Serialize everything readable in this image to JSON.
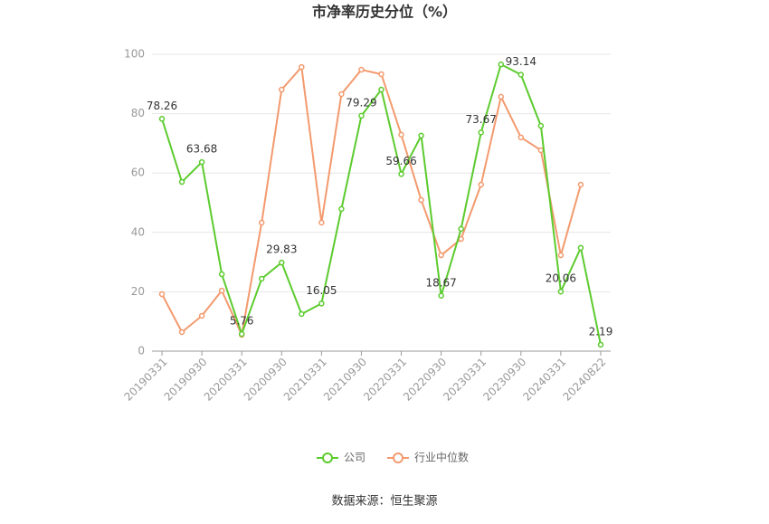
{
  "chart_data": {
    "type": "line",
    "title": "市净率历史分位（%）",
    "categories": [
      "20190331",
      null,
      "20190930",
      null,
      "20200331",
      null,
      "20200930",
      null,
      "20210331",
      null,
      "20210930",
      null,
      "20220331",
      null,
      "20220930",
      null,
      "20230331",
      null,
      "20230930",
      null,
      "20240331",
      null,
      "20240822"
    ],
    "series": [
      {
        "name": "公司",
        "color": "#5ccb2e",
        "values": [
          78.26,
          57,
          63.68,
          25.9,
          5.76,
          24.4,
          29.83,
          12.5,
          16.05,
          47.9,
          79.29,
          88.1,
          59.66,
          72.6,
          18.67,
          41.2,
          73.67,
          96.6,
          93.14,
          75.9,
          20.06,
          34.8,
          2.19
        ],
        "value_labels": [
          "78.26",
          null,
          "63.68",
          null,
          "5.76",
          null,
          "29.83",
          null,
          "16.05",
          null,
          "79.29",
          null,
          "59.66",
          null,
          "18.67",
          null,
          "73.67",
          null,
          "93.14",
          null,
          "20.06",
          null,
          "2.19"
        ]
      },
      {
        "name": "行业中位数",
        "color": "#f39a6e",
        "values": [
          19.2,
          6.4,
          11.9,
          20.4,
          5.5,
          43.3,
          88.1,
          95.7,
          43.3,
          86.6,
          94.8,
          93.3,
          72.9,
          50.9,
          32.3,
          37.8,
          56.1,
          85.7,
          72.0,
          67.7,
          32.3,
          56.1,
          null
        ]
      }
    ],
    "ylim": [
      0,
      100
    ],
    "yticks": [
      0,
      20,
      40,
      60,
      80,
      100
    ],
    "grid": true,
    "source": "数据来源：恒生聚源"
  }
}
